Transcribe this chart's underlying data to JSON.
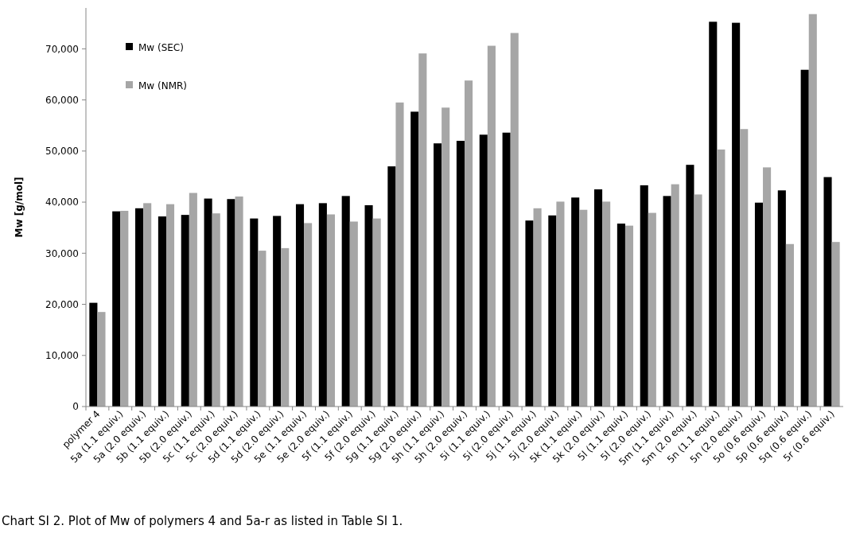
{
  "chart_data": {
    "type": "bar",
    "ylabel": "Mw [g/mol]",
    "categories": [
      "polymer 4",
      "5a (1.1 equiv.)",
      "5a (2.0 equiv.)",
      "5b (1.1 equiv.)",
      "5b (2.0 equiv.)",
      "5c (1.1 equiv.)",
      "5c (2.0 equiv.)",
      "5d (1.1 equiv.)",
      "5d (2.0 equiv.)",
      "5e (1.1 equiv.)",
      "5e (2.0 equiv.)",
      "5f (1.1 equiv.)",
      "5f (2.0 equiv.)",
      "5g (1.1 equiv.)",
      "5g (2.0 equiv.)",
      "5h (1.1 equiv.)",
      "5h (2.0 equiv.)",
      "5i (1.1 equiv.)",
      "5i (2.0 equiv.)",
      "5j (1.1 equiv.)",
      "5j (2.0 equiv.)",
      "5k (1.1 equiv.)",
      "5k (2.0 equiv.)",
      "5l (1.1 equiv.)",
      "5l (2.0 equiv.)",
      "5m (1.1 equiv.)",
      "5m (2.0 equiv.)",
      "5n (1.1 equiv.)",
      "5n (2.0 equiv.)",
      "5o (0.6 equiv.)",
      "5p (0.6 equiv.)",
      "5q (0.6 equiv.)",
      "5r (0.6 equiv.)"
    ],
    "series": [
      {
        "name": "Mw (SEC)",
        "color": "#000000",
        "values": [
          20300,
          38200,
          38800,
          37200,
          37500,
          40700,
          40600,
          36800,
          37300,
          39600,
          39800,
          41200,
          39400,
          47000,
          57700,
          51500,
          52000,
          53200,
          53600,
          36400,
          37400,
          40900,
          42500,
          35800,
          43300,
          41200,
          47300,
          75300,
          75100,
          39900,
          42300,
          65900,
          44900
        ]
      },
      {
        "name": "Mw (NMR)",
        "color": "#a6a6a6",
        "values": [
          18500,
          38300,
          39800,
          39600,
          41800,
          37800,
          41100,
          30500,
          31000,
          35900,
          37600,
          36200,
          36800,
          59500,
          69100,
          58500,
          63800,
          70600,
          73100,
          38800,
          40100,
          38500,
          40100,
          35400,
          37900,
          43500,
          41500,
          50300,
          54300,
          46800,
          31800,
          76800,
          32200
        ]
      }
    ],
    "ylim": [
      0,
      78000
    ],
    "yticks": [
      {
        "value": 0,
        "label": "0"
      },
      {
        "value": 10000,
        "label": "10,000"
      },
      {
        "value": 20000,
        "label": "20,000"
      },
      {
        "value": 30000,
        "label": "30,000"
      },
      {
        "value": 40000,
        "label": "40,000"
      },
      {
        "value": 50000,
        "label": "50,000"
      },
      {
        "value": 60000,
        "label": "60,000"
      },
      {
        "value": 70000,
        "label": "70,000"
      }
    ],
    "grid": false,
    "legend": "top left",
    "annotations": [
      "Chart SI 2. Plot of Mw of polymers 4 and 5a-r as listed in Table SI 1."
    ]
  }
}
